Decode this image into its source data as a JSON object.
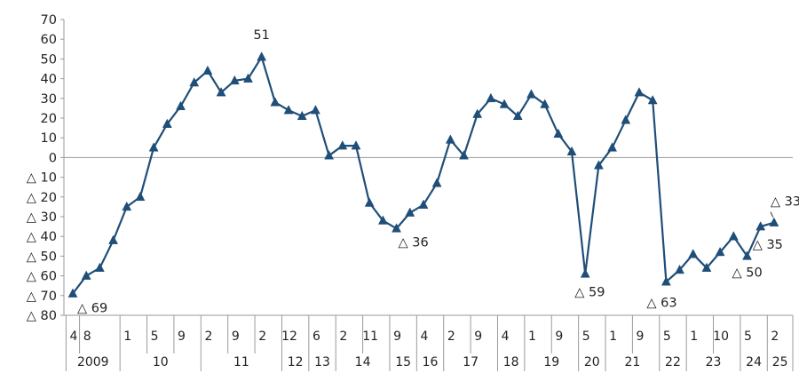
{
  "chart_data": {
    "type": "line",
    "title": "",
    "xlabel": "",
    "ylabel": "",
    "ylim": [
      -80,
      70
    ],
    "yticks": [
      70,
      60,
      50,
      40,
      30,
      20,
      10,
      0,
      -10,
      -20,
      -30,
      -40,
      -50,
      -60,
      -70,
      -80
    ],
    "ytick_labels": [
      "70",
      "60",
      "50",
      "40",
      "30",
      "20",
      "10",
      "0",
      "△ 10",
      "△ 20",
      "△ 30",
      "△ 40",
      "△ 50",
      "△ 60",
      "△ 70",
      "△ 80"
    ],
    "grid": false,
    "series_color": "#1f4e79",
    "x_month_ticks": [
      {
        "label": "4",
        "index": 0
      },
      {
        "label": "8",
        "index": 1
      },
      {
        "label": "1",
        "index": 4
      },
      {
        "label": "5",
        "index": 6
      },
      {
        "label": "9",
        "index": 8
      },
      {
        "label": "2",
        "index": 10
      },
      {
        "label": "9",
        "index": 12
      },
      {
        "label": "2",
        "index": 14
      },
      {
        "label": "12",
        "index": 16
      },
      {
        "label": "6",
        "index": 18
      },
      {
        "label": "2",
        "index": 20
      },
      {
        "label": "11",
        "index": 22
      },
      {
        "label": "9",
        "index": 24
      },
      {
        "label": "4",
        "index": 26
      },
      {
        "label": "2",
        "index": 28
      },
      {
        "label": "9",
        "index": 30
      },
      {
        "label": "4",
        "index": 32
      },
      {
        "label": "1",
        "index": 34
      },
      {
        "label": "9",
        "index": 36
      },
      {
        "label": "5",
        "index": 38
      },
      {
        "label": "1",
        "index": 40
      },
      {
        "label": "9",
        "index": 42
      },
      {
        "label": "5",
        "index": 44
      },
      {
        "label": "1",
        "index": 46
      },
      {
        "label": "10",
        "index": 48
      },
      {
        "label": "5",
        "index": 50
      },
      {
        "label": "2",
        "index": 52
      }
    ],
    "x_year_groups": [
      {
        "label": "2009",
        "start": 0,
        "end": 3
      },
      {
        "label": "10",
        "start": 4,
        "end": 9
      },
      {
        "label": "11",
        "start": 10,
        "end": 15
      },
      {
        "label": "12",
        "start": 16,
        "end": 17
      },
      {
        "label": "13",
        "start": 18,
        "end": 19
      },
      {
        "label": "14",
        "start": 20,
        "end": 23
      },
      {
        "label": "15",
        "start": 24,
        "end": 25
      },
      {
        "label": "16",
        "start": 26,
        "end": 27
      },
      {
        "label": "17",
        "start": 28,
        "end": 31
      },
      {
        "label": "18",
        "start": 32,
        "end": 33
      },
      {
        "label": "19",
        "start": 34,
        "end": 37
      },
      {
        "label": "20",
        "start": 38,
        "end": 39
      },
      {
        "label": "21",
        "start": 40,
        "end": 43
      },
      {
        "label": "22",
        "start": 44,
        "end": 45
      },
      {
        "label": "23",
        "start": 46,
        "end": 49
      },
      {
        "label": "24",
        "start": 50,
        "end": 51
      },
      {
        "label": "25",
        "start": 52,
        "end": 53
      }
    ],
    "series": [
      {
        "values": [
          -69,
          -60,
          -56,
          -42,
          -25,
          -20,
          5,
          17,
          26,
          38,
          44,
          33,
          39,
          40,
          51,
          28,
          24,
          21,
          24,
          1,
          6,
          6,
          -23,
          -32,
          -36,
          -28,
          -24,
          -13,
          9,
          1,
          22,
          30,
          27,
          21,
          32,
          27,
          12,
          3,
          -59,
          -4,
          5,
          19,
          33,
          29,
          -63,
          -57,
          -49,
          -56,
          -48,
          -40,
          -50,
          -35,
          -33
        ]
      }
    ],
    "data_labels": [
      {
        "index": 0,
        "text": "△ 69"
      },
      {
        "index": 14,
        "text": "51"
      },
      {
        "index": 24,
        "text": "△ 36"
      },
      {
        "index": 38,
        "text": "△ 59"
      },
      {
        "index": 44,
        "text": "△ 63"
      },
      {
        "index": 50,
        "text": "△ 50"
      },
      {
        "index": 51,
        "text": "△ 35"
      },
      {
        "index": 52,
        "text": "△ 33"
      }
    ]
  }
}
